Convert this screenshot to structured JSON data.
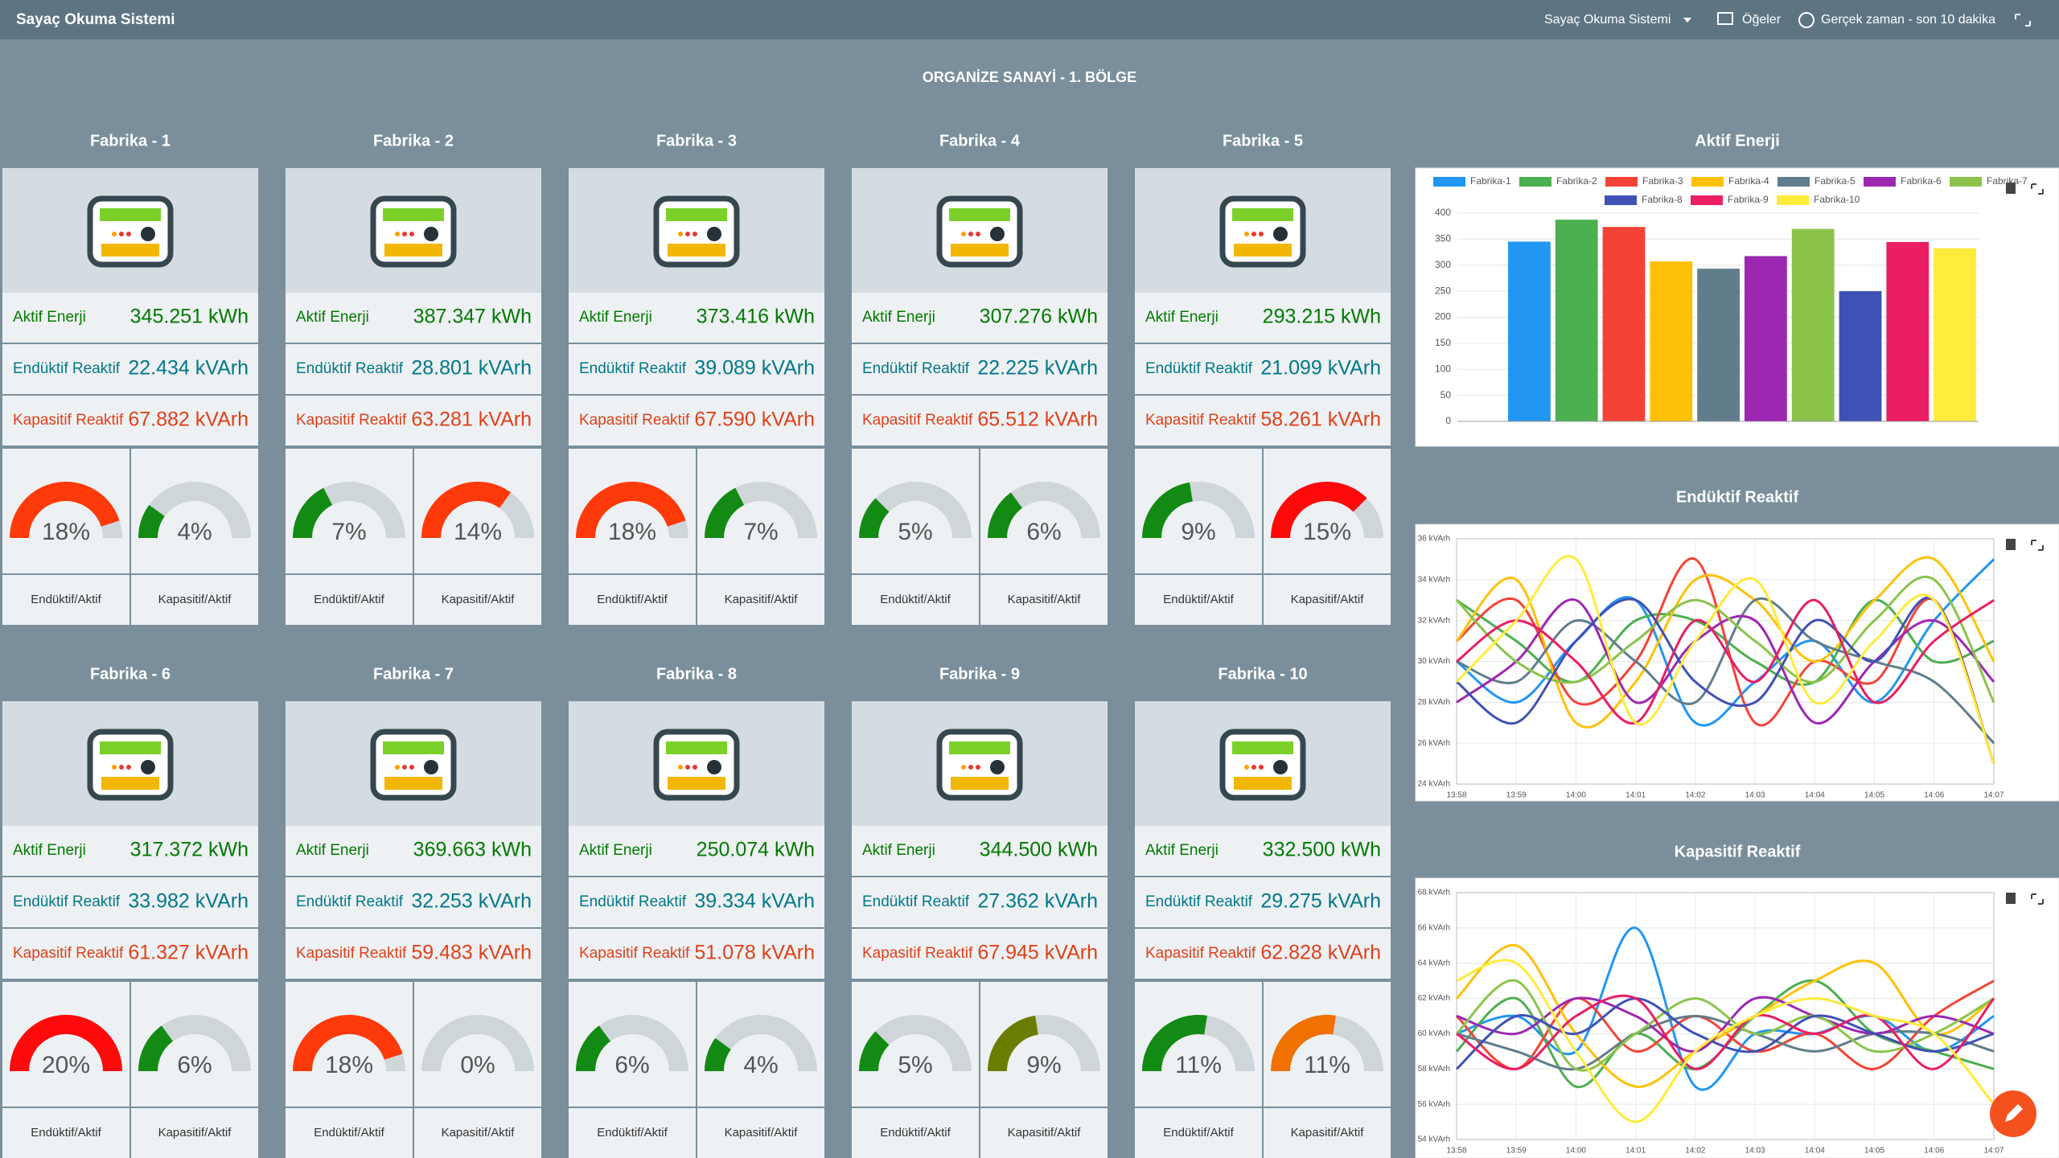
{
  "header": {
    "app_title": "Sayaç Okuma Sistemi",
    "dashboard_picker": "Sayaç Okuma Sistemi",
    "items": "Öğeler",
    "time_range": "Gerçek zaman - son 10 dakika"
  },
  "section_title": "ORGANİZE SANAYİ - 1. BÖLGE",
  "gauge_range": [
    0,
    20
  ],
  "factories": [
    {
      "name": "Fabrika - 1",
      "rows": [
        {
          "label": "Aktif Enerji",
          "value": "345.251 kWh"
        },
        {
          "label": "Endüktif Reaktif",
          "value": "22.434 kVArh"
        },
        {
          "label": "Kapasitif Reaktif",
          "value": "67.882 kVArh"
        }
      ],
      "gauges": [
        {
          "value": 18,
          "label": "18%",
          "color": "#ff3a0a",
          "caption": "Endüktif/Aktif"
        },
        {
          "value": 4,
          "label": "4%",
          "color": "#138a13",
          "caption": "Kapasitif/Aktif"
        }
      ]
    },
    {
      "name": "Fabrika - 2",
      "rows": [
        {
          "label": "Aktif Enerji",
          "value": "387.347 kWh"
        },
        {
          "label": "Endüktif Reaktif",
          "value": "28.801 kVArh"
        },
        {
          "label": "Kapasitif Reaktif",
          "value": "63.281 kVArh"
        }
      ],
      "gauges": [
        {
          "value": 7,
          "label": "7%",
          "color": "#138a13",
          "caption": "Endüktif/Aktif"
        },
        {
          "value": 14,
          "label": "14%",
          "color": "#ff3a0a",
          "caption": "Kapasitif/Aktif"
        }
      ]
    },
    {
      "name": "Fabrika - 3",
      "rows": [
        {
          "label": "Aktif Enerji",
          "value": "373.416 kWh"
        },
        {
          "label": "Endüktif Reaktif",
          "value": "39.089 kVArh"
        },
        {
          "label": "Kapasitif Reaktif",
          "value": "67.590 kVArh"
        }
      ],
      "gauges": [
        {
          "value": 18,
          "label": "18%",
          "color": "#ff3a0a",
          "caption": "Endüktif/Aktif"
        },
        {
          "value": 7,
          "label": "7%",
          "color": "#138a13",
          "caption": "Kapasitif/Aktif"
        }
      ]
    },
    {
      "name": "Fabrika - 4",
      "rows": [
        {
          "label": "Aktif Enerji",
          "value": "307.276 kWh"
        },
        {
          "label": "Endüktif Reaktif",
          "value": "22.225 kVArh"
        },
        {
          "label": "Kapasitif Reaktif",
          "value": "65.512 kVArh"
        }
      ],
      "gauges": [
        {
          "value": 5,
          "label": "5%",
          "color": "#138a13",
          "caption": "Endüktif/Aktif"
        },
        {
          "value": 6,
          "label": "6%",
          "color": "#138a13",
          "caption": "Kapasitif/Aktif"
        }
      ]
    },
    {
      "name": "Fabrika - 5",
      "rows": [
        {
          "label": "Aktif Enerji",
          "value": "293.215 kWh"
        },
        {
          "label": "Endüktif Reaktif",
          "value": "21.099 kVArh"
        },
        {
          "label": "Kapasitif Reaktif",
          "value": "58.261 kVArh"
        }
      ],
      "gauges": [
        {
          "value": 9,
          "label": "9%",
          "color": "#138a13",
          "caption": "Endüktif/Aktif"
        },
        {
          "value": 15,
          "label": "15%",
          "color": "#ff0a0a",
          "caption": "Kapasitif/Aktif"
        }
      ]
    },
    {
      "name": "Fabrika - 6",
      "rows": [
        {
          "label": "Aktif Enerji",
          "value": "317.372 kWh"
        },
        {
          "label": "Endüktif Reaktif",
          "value": "33.982 kVArh"
        },
        {
          "label": "Kapasitif Reaktif",
          "value": "61.327 kVArh"
        }
      ],
      "gauges": [
        {
          "value": 20,
          "label": "20%",
          "color": "#ff0a0a",
          "caption": "Endüktif/Aktif"
        },
        {
          "value": 6,
          "label": "6%",
          "color": "#138a13",
          "caption": "Kapasitif/Aktif"
        }
      ]
    },
    {
      "name": "Fabrika - 7",
      "rows": [
        {
          "label": "Aktif Enerji",
          "value": "369.663 kWh"
        },
        {
          "label": "Endüktif Reaktif",
          "value": "32.253 kVArh"
        },
        {
          "label": "Kapasitif Reaktif",
          "value": "59.483 kVArh"
        }
      ],
      "gauges": [
        {
          "value": 18,
          "label": "18%",
          "color": "#ff3a0a",
          "caption": "Endüktif/Aktif"
        },
        {
          "value": 0,
          "label": "0%",
          "color": "#138a13",
          "caption": "Kapasitif/Aktif"
        }
      ]
    },
    {
      "name": "Fabrika - 8",
      "rows": [
        {
          "label": "Aktif Enerji",
          "value": "250.074 kWh"
        },
        {
          "label": "Endüktif Reaktif",
          "value": "39.334 kVArh"
        },
        {
          "label": "Kapasitif Reaktif",
          "value": "51.078 kVArh"
        }
      ],
      "gauges": [
        {
          "value": 6,
          "label": "6%",
          "color": "#138a13",
          "caption": "Endüktif/Aktif"
        },
        {
          "value": 4,
          "label": "4%",
          "color": "#138a13",
          "caption": "Kapasitif/Aktif"
        }
      ]
    },
    {
      "name": "Fabrika - 9",
      "rows": [
        {
          "label": "Aktif Enerji",
          "value": "344.500 kWh"
        },
        {
          "label": "Endüktif Reaktif",
          "value": "27.362 kVArh"
        },
        {
          "label": "Kapasitif Reaktif",
          "value": "67.945 kVArh"
        }
      ],
      "gauges": [
        {
          "value": 5,
          "label": "5%",
          "color": "#138a13",
          "caption": "Endüktif/Aktif"
        },
        {
          "value": 9,
          "label": "9%",
          "color": "#6b7d00",
          "caption": "Kapasitif/Aktif"
        }
      ]
    },
    {
      "name": "Fabrika - 10",
      "rows": [
        {
          "label": "Aktif Enerji",
          "value": "332.500 kWh"
        },
        {
          "label": "Endüktif Reaktif",
          "value": "29.275 kVArh"
        },
        {
          "label": "Kapasitif Reaktif",
          "value": "62.828 kVArh"
        }
      ],
      "gauges": [
        {
          "value": 11,
          "label": "11%",
          "color": "#138a13",
          "caption": "Endüktif/Aktif"
        },
        {
          "value": 11,
          "label": "11%",
          "color": "#f07000",
          "caption": "Kapasitif/Aktif"
        }
      ]
    }
  ],
  "chart_data": [
    {
      "type": "bar",
      "title": "Aktif Enerji",
      "categories": [
        "Fabrika-1",
        "Fabrika-2",
        "Fabrika-3",
        "Fabrika-4",
        "Fabrika-5",
        "Fabrika-6",
        "Fabrika-7",
        "Fabrika-8",
        "Fabrika-9",
        "Fabrika-10"
      ],
      "values": [
        345.251,
        387.347,
        373.416,
        307.276,
        293.215,
        317.372,
        369.663,
        250.074,
        344.5,
        332.5
      ],
      "colors": [
        "#2196f3",
        "#4caf50",
        "#f44336",
        "#ffc107",
        "#607d8b",
        "#9c27b0",
        "#8bc34a",
        "#3f51b5",
        "#e91e63",
        "#ffeb3b"
      ],
      "ylim": [
        0,
        400
      ],
      "yticks": [
        0,
        50,
        100,
        150,
        200,
        250,
        300,
        350,
        400
      ],
      "grid": true
    },
    {
      "type": "line",
      "title": "Endüktif Reaktif",
      "x": [
        "13:58",
        "13:59",
        "14:00",
        "14:01",
        "14:02",
        "14:03",
        "14:04",
        "14:05",
        "14:06",
        "14:07"
      ],
      "ylim": [
        24,
        36
      ],
      "yticks": [
        {
          "value": 24,
          "label": "24 kVArh"
        },
        {
          "value": 26,
          "label": "26 kVArh"
        },
        {
          "value": 28,
          "label": "28 kVArh"
        },
        {
          "value": 30,
          "label": "30 kVArh"
        },
        {
          "value": 32,
          "label": "32 kVArh"
        },
        {
          "value": 34,
          "label": "34 kVArh"
        },
        {
          "value": 36,
          "label": "36 kVArh"
        }
      ],
      "grid": true,
      "series": [
        {
          "color": "#2196f3",
          "values": [
            30,
            28,
            31,
            33,
            27,
            29,
            31,
            28,
            32,
            35
          ]
        },
        {
          "color": "#4caf50",
          "values": [
            33,
            31,
            29,
            32,
            32,
            30,
            29,
            33,
            30,
            31
          ]
        },
        {
          "color": "#f44336",
          "values": [
            31,
            33,
            28,
            30,
            35,
            27,
            30,
            29,
            33,
            25
          ]
        },
        {
          "color": "#ffc107",
          "values": [
            31,
            34,
            27,
            29,
            34,
            33,
            30,
            33,
            35,
            30
          ]
        },
        {
          "color": "#607d8b",
          "values": [
            30,
            29,
            32,
            30,
            28,
            33,
            31,
            30,
            29,
            26
          ]
        },
        {
          "color": "#9c27b0",
          "values": [
            28,
            30,
            33,
            28,
            31,
            32,
            27,
            30,
            32,
            29
          ]
        },
        {
          "color": "#8bc34a",
          "values": [
            33,
            30,
            29,
            31,
            33,
            31,
            29,
            32,
            34,
            28
          ]
        },
        {
          "color": "#3f51b5",
          "values": [
            29,
            27,
            31,
            33,
            29,
            28,
            32,
            30,
            33,
            25
          ]
        },
        {
          "color": "#e91e63",
          "values": [
            30,
            32,
            30,
            27,
            32,
            29,
            33,
            28,
            31,
            33
          ]
        },
        {
          "color": "#ffeb3b",
          "values": [
            29,
            32,
            35,
            27,
            31,
            34,
            28,
            31,
            33,
            25
          ]
        }
      ]
    },
    {
      "type": "line",
      "title": "Kapasitif Reaktif",
      "x": [
        "13:58",
        "13:59",
        "14:00",
        "14:01",
        "14:02",
        "14:03",
        "14:04",
        "14:05",
        "14:06",
        "14:07"
      ],
      "ylim": [
        54,
        68
      ],
      "yticks": [
        {
          "value": 54,
          "label": "54 kVArh"
        },
        {
          "value": 56,
          "label": "56 kVArh"
        },
        {
          "value": 58,
          "label": "58 kVArh"
        },
        {
          "value": 60,
          "label": "60 kVArh"
        },
        {
          "value": 62,
          "label": "62 kVArh"
        },
        {
          "value": 64,
          "label": "64 kVArh"
        },
        {
          "value": 66,
          "label": "66 kVArh"
        },
        {
          "value": 68,
          "label": "68 kVArh"
        }
      ],
      "grid": true,
      "series": [
        {
          "color": "#2196f3",
          "values": [
            60,
            61,
            59,
            66,
            57,
            60,
            60,
            61,
            59,
            61
          ]
        },
        {
          "color": "#4caf50",
          "values": [
            59,
            62,
            57,
            60,
            58,
            61,
            63,
            60,
            59,
            58
          ]
        },
        {
          "color": "#f44336",
          "values": [
            61,
            58,
            62,
            59,
            61,
            59,
            60,
            58,
            61,
            63
          ]
        },
        {
          "color": "#ffc107",
          "values": [
            62,
            65,
            60,
            57,
            59,
            61,
            63,
            64,
            60,
            62
          ]
        },
        {
          "color": "#607d8b",
          "values": [
            60,
            59,
            58,
            60,
            61,
            60,
            59,
            60,
            60,
            59
          ]
        },
        {
          "color": "#9c27b0",
          "values": [
            61,
            60,
            62,
            61,
            59,
            62,
            61,
            60,
            61,
            60
          ]
        },
        {
          "color": "#8bc34a",
          "values": [
            60,
            63,
            58,
            60,
            62,
            60,
            61,
            59,
            60,
            62
          ]
        },
        {
          "color": "#3f51b5",
          "values": [
            58,
            61,
            60,
            62,
            60,
            59,
            61,
            60,
            59,
            60
          ]
        },
        {
          "color": "#e91e63",
          "values": [
            60,
            58,
            61,
            62,
            58,
            61,
            60,
            61,
            58,
            62
          ]
        },
        {
          "color": "#ffeb3b",
          "values": [
            63,
            64,
            59,
            55,
            59,
            61,
            62,
            61,
            60,
            56
          ]
        }
      ]
    }
  ]
}
